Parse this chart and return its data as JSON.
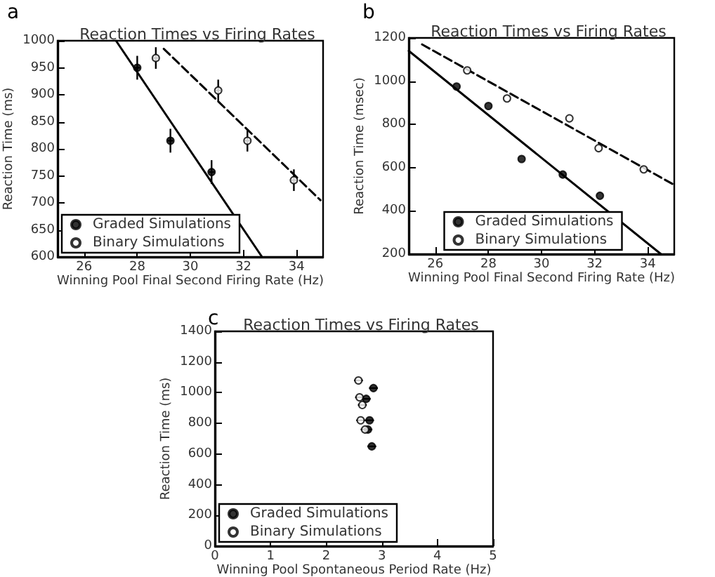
{
  "chart_data": [
    {
      "type": "scatter",
      "title": "Reaction Times vs Firing Rates",
      "xlabel": "Winning Pool Final Second Firing Rate (Hz)",
      "ylabel": "Reaction Time (ms)",
      "annotations": [
        "a"
      ],
      "xlim": [
        25,
        35
      ],
      "xticks": [
        26,
        28,
        30,
        32,
        34
      ],
      "ylim": [
        600,
        1000
      ],
      "yticks": [
        600,
        650,
        700,
        750,
        800,
        850,
        900,
        950,
        1000
      ],
      "legend": "bottom left",
      "grid": false,
      "series": [
        {
          "name": "Graded Simulations",
          "color": "#000000",
          "marker": "circle",
          "x": [
            28,
            29.25,
            30.8
          ],
          "values": [
            950,
            815,
            757
          ],
          "errors": [
            22,
            22,
            22
          ],
          "xerrors": [
            0.1,
            0.1,
            0.1
          ]
        },
        {
          "name": "Binary Simulations",
          "color": "#ffffff",
          "marker": "circle",
          "x": [
            28.7,
            31.05,
            32.15,
            33.9
          ],
          "values": [
            968,
            908,
            815,
            742
          ],
          "errors": [
            20,
            20,
            20,
            20
          ],
          "xerrors": [
            0.1,
            0.1,
            0.1,
            0.1
          ]
        },
        {
          "type": "line",
          "color": "#000000",
          "marker": "none",
          "line_style": "solid",
          "x": [
            27.2,
            32.7
          ],
          "values": [
            1000,
            600
          ]
        },
        {
          "type": "line",
          "color": "#000000",
          "marker": "none",
          "line_style": "dashed",
          "x": [
            29,
            34.9
          ],
          "values": [
            985,
            705
          ]
        }
      ]
    },
    {
      "type": "scatter",
      "title": "Reaction Times vs Firing Rates",
      "xlabel": "Winning Pool Final Second Firing Rate (Hz)",
      "ylabel": "Reaction Time (msec)",
      "annotations": [
        "b"
      ],
      "xlim": [
        25,
        35
      ],
      "xticks": [
        26,
        28,
        30,
        32,
        34
      ],
      "ylim": [
        200,
        1200
      ],
      "yticks": [
        200,
        400,
        600,
        800,
        1000,
        1200
      ],
      "legend": "bottom",
      "grid": false,
      "series": [
        {
          "name": "Graded Simulations",
          "color": "#000000",
          "marker": "circle",
          "x": [
            26.8,
            28,
            29.25,
            30.8,
            32.2
          ],
          "values": [
            975,
            885,
            640,
            568,
            470
          ]
        },
        {
          "name": "Binary Simulations",
          "color": "#ffffff",
          "marker": "circle",
          "x": [
            27.2,
            28.7,
            31.05,
            32.15,
            33.85
          ],
          "values": [
            1050,
            920,
            828,
            690,
            592
          ]
        },
        {
          "type": "line",
          "color": "#000000",
          "marker": "none",
          "line_style": "solid",
          "x": [
            25,
            34.5
          ],
          "values": [
            1140,
            200
          ]
        },
        {
          "type": "line",
          "color": "#000000",
          "marker": "none",
          "line_style": "dashed",
          "x": [
            25.5,
            35
          ],
          "values": [
            1170,
            520
          ]
        }
      ]
    },
    {
      "type": "scatter",
      "title": "Reaction Times vs Firing Rates",
      "xlabel": "Winning Pool Spontaneous Period Rate (Hz)",
      "ylabel": "Reaction Time (ms)",
      "annotations": [
        "c"
      ],
      "xlim": [
        0,
        5
      ],
      "xticks": [
        0,
        1,
        2,
        3,
        4,
        5
      ],
      "ylim": [
        0,
        1400
      ],
      "yticks": [
        0,
        200,
        400,
        600,
        800,
        1000,
        1200,
        1400
      ],
      "legend": "bottom left",
      "grid": false,
      "series": [
        {
          "name": "Graded Simulations",
          "color": "#000000",
          "marker": "circle",
          "x": [
            2.85,
            2.72,
            2.78,
            2.75,
            2.82
          ],
          "values": [
            1030,
            960,
            820,
            760,
            650
          ],
          "xerrors": [
            0.08,
            0.08,
            0.08,
            0.08,
            0.08
          ]
        },
        {
          "name": "Binary Simulations",
          "color": "#ffffff",
          "marker": "circle",
          "x": [
            2.58,
            2.6,
            2.65,
            2.62,
            2.7
          ],
          "values": [
            1080,
            970,
            920,
            820,
            760
          ],
          "xerrors": [
            0.08,
            0.08,
            0.08,
            0.08,
            0.08
          ]
        }
      ]
    }
  ]
}
